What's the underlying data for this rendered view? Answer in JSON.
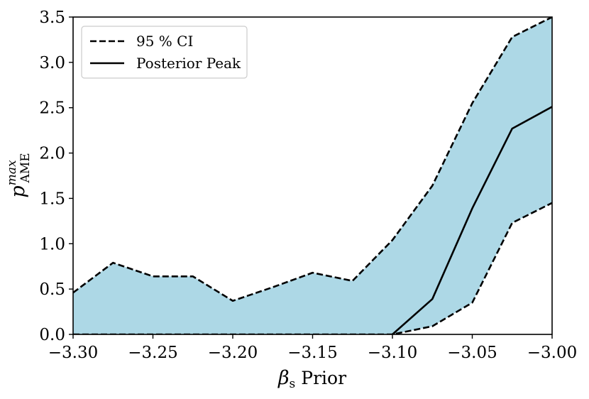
{
  "chart_data": {
    "type": "area",
    "title": "",
    "xlabel": "βs Prior",
    "ylabel": "p^max_AME",
    "xlim": [
      -3.3,
      -3.0
    ],
    "ylim": [
      0.0,
      3.5
    ],
    "x_ticks": [
      -3.3,
      -3.25,
      -3.2,
      -3.15,
      -3.1,
      -3.05,
      -3.0
    ],
    "x_tick_labels": [
      "−3.30",
      "−3.25",
      "−3.20",
      "−3.15",
      "−3.10",
      "−3.05",
      "−3.00"
    ],
    "y_ticks": [
      0.0,
      0.5,
      1.0,
      1.5,
      2.0,
      2.5,
      3.0,
      3.5
    ],
    "y_tick_labels": [
      "0.0",
      "0.5",
      "1.0",
      "1.5",
      "2.0",
      "2.5",
      "3.0",
      "3.5"
    ],
    "grid": false,
    "legend_position": "top-left",
    "fill_color": "#add8e6",
    "line_color": "#000000",
    "ci_upper": {
      "x": [
        -3.3,
        -3.275,
        -3.25,
        -3.225,
        -3.2,
        -3.175,
        -3.15,
        -3.125,
        -3.1,
        -3.075,
        -3.05,
        -3.025,
        -3.0
      ],
      "y": [
        0.46,
        0.79,
        0.64,
        0.64,
        0.37,
        0.52,
        0.68,
        0.59,
        1.04,
        1.64,
        2.55,
        3.28,
        3.5
      ]
    },
    "ci_lower": {
      "x": [
        -3.3,
        -3.275,
        -3.25,
        -3.225,
        -3.2,
        -3.175,
        -3.15,
        -3.125,
        -3.1,
        -3.075,
        -3.05,
        -3.025,
        -3.0
      ],
      "y": [
        0.0,
        0.0,
        0.0,
        0.0,
        0.0,
        0.0,
        0.0,
        0.0,
        0.0,
        0.09,
        0.35,
        1.23,
        1.45
      ]
    },
    "posterior_peak": {
      "x": [
        -3.1,
        -3.075,
        -3.05,
        -3.025,
        -3.0
      ],
      "y": [
        0.0,
        0.39,
        1.39,
        2.27,
        2.51
      ]
    },
    "series": [
      {
        "name": "95 % CI",
        "style": "dashed"
      },
      {
        "name": "Posterior Peak",
        "style": "solid"
      }
    ]
  }
}
